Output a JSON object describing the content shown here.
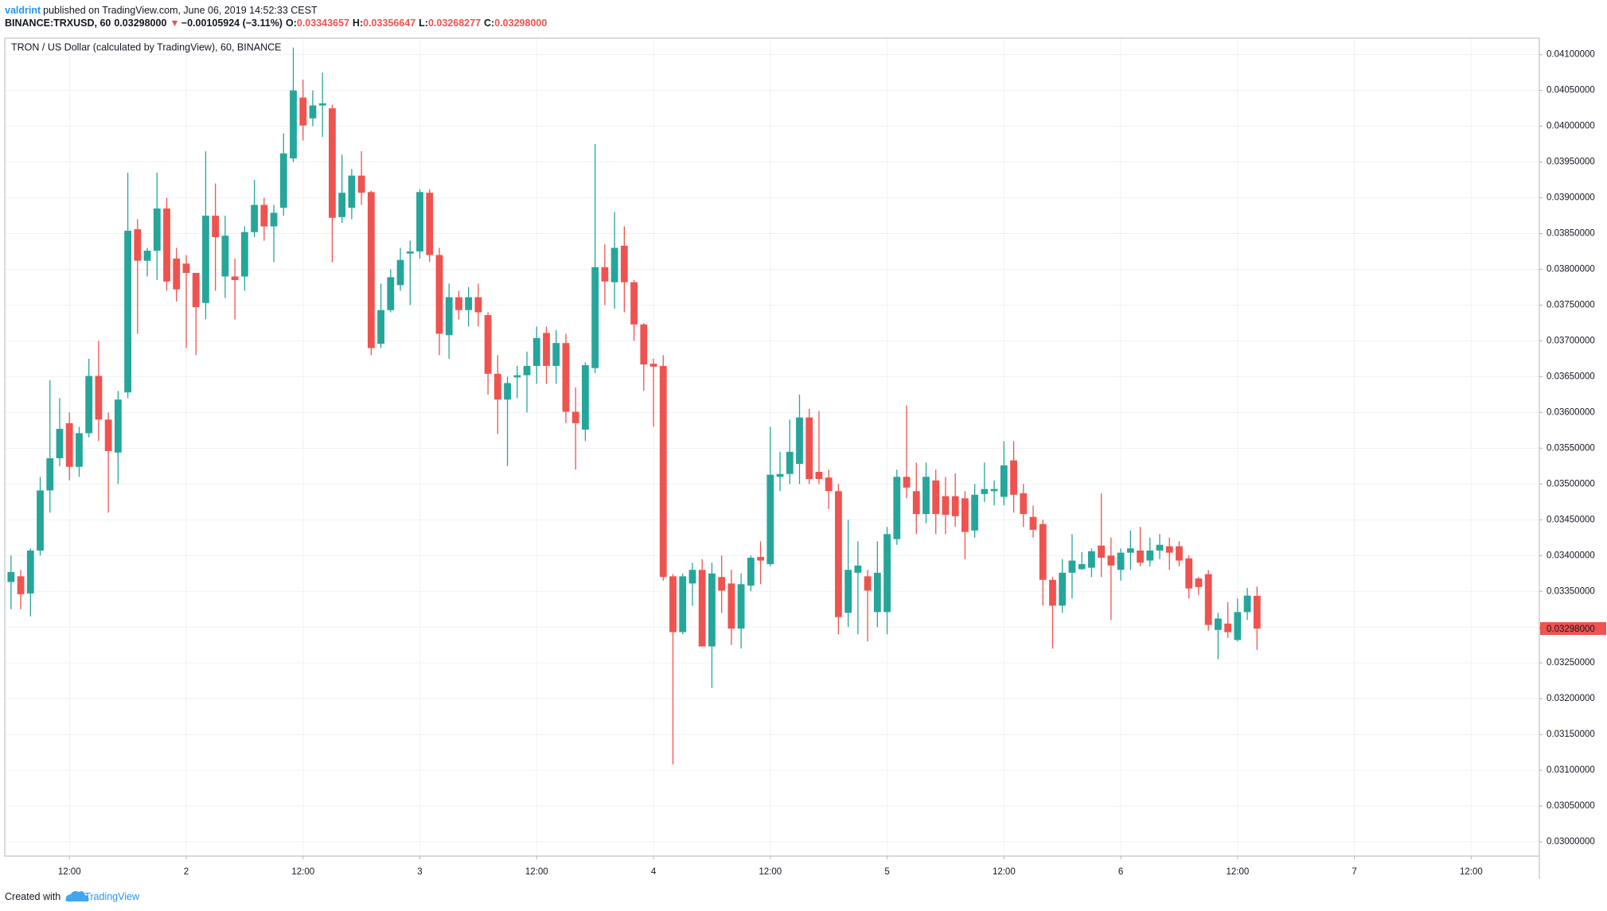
{
  "header": {
    "author": "valdrint",
    "published": "published on TradingView.com, June 06, 2019 14:52:33 CEST",
    "symbol": "BINANCE:TRXUSD, 60",
    "last": "0.03298000",
    "arrow": "▼",
    "change": "−0.00105924 (−3.11%)",
    "o_label": "O:",
    "open": "0.03343657",
    "h_label": "H:",
    "high": "0.03356647",
    "l_label": "L:",
    "low": "0.03268277",
    "c_label": "C:",
    "close": "0.03298000"
  },
  "footer": {
    "prefix": "Created with",
    "brand": "TradingView"
  },
  "chart_data": {
    "type": "candlestick",
    "title": "TRON / US Dollar (calculated by TradingView), 60, BINANCE",
    "up_color": "#26a69a",
    "down_color": "#ef5350",
    "grid": true,
    "categories": [
      null,
      null,
      null,
      null,
      null,
      null,
      "12:00",
      null,
      null,
      null,
      null,
      null,
      null,
      null,
      null,
      null,
      null,
      null,
      "2",
      null,
      null,
      null,
      null,
      null,
      null,
      null,
      null,
      null,
      null,
      null,
      "12:00",
      null,
      null,
      null,
      null,
      null,
      null,
      null,
      null,
      null,
      null,
      null,
      "3",
      null,
      null,
      null,
      null,
      null,
      null,
      null,
      null,
      null,
      null,
      null,
      "12:00",
      null,
      null,
      null,
      null,
      null,
      null,
      null,
      null,
      null,
      null,
      null,
      "4",
      null,
      null,
      null,
      null,
      null,
      null,
      null,
      null,
      null,
      null,
      null,
      "12:00",
      null,
      null,
      null,
      null,
      null,
      null,
      null,
      null,
      null,
      null,
      null,
      "5",
      null,
      null,
      null,
      null,
      null,
      null,
      null,
      null,
      null,
      null,
      null,
      "12:00",
      null,
      null,
      null,
      null,
      null,
      null,
      null,
      null,
      null,
      null,
      null,
      "6",
      null,
      null,
      null,
      null,
      null,
      null,
      null,
      null,
      null,
      null,
      null,
      "12:00",
      null,
      null,
      null,
      null,
      null,
      null,
      null,
      null,
      null,
      null,
      null,
      "7",
      null,
      null,
      null,
      null,
      null,
      null,
      null,
      null,
      null,
      null,
      null,
      "12:00",
      null,
      null,
      null,
      null,
      null,
      null,
      null
    ],
    "open": [
      0.03363,
      0.03371,
      0.03347,
      0.03407,
      0.03491,
      0.03536,
      0.03585,
      0.03524,
      0.03571,
      0.03651,
      0.0359,
      0.03544,
      0.03628,
      0.03856,
      0.03812,
      0.03826,
      0.03885,
      0.03815,
      0.03808,
      0.03795,
      0.03753,
      0.03875,
      0.0379,
      0.0379,
      0.0379,
      0.03852,
      0.0389,
      0.0386,
      0.03886,
      0.03955,
      0.0404,
      0.04011,
      0.04029,
      0.04025,
      0.03873,
      0.03886,
      0.03931,
      0.03908,
      0.03696,
      0.03743,
      0.03778,
      0.03822,
      0.03825,
      0.03907,
      0.0382,
      0.03708,
      0.03761,
      0.03743,
      0.03761,
      0.03736,
      0.03654,
      0.03618,
      0.03649,
      0.03652,
      0.03665,
      0.03711,
      0.03665,
      0.03697,
      0.03601,
      0.03576,
      0.03662,
      0.03803,
      0.03782,
      0.03833,
      0.03782,
      0.03723,
      0.03668,
      0.03665,
      0.03371,
      0.03293,
      0.03361,
      0.0338,
      0.03273,
      0.0337,
      0.03361,
      0.03298,
      0.03358,
      0.03398,
      0.03388,
      0.0351,
      0.03514,
      0.03528,
      0.03593,
      0.03517,
      0.03509,
      0.0349,
      0.0332,
      0.03376,
      0.03371,
      0.03321,
      0.03321,
      0.03423,
      0.0351,
      0.0349,
      0.03458,
      0.03505,
      0.03483,
      0.03483,
      0.0348,
      0.03435,
      0.03486,
      0.0349,
      0.03482,
      0.03533,
      0.03487,
      0.03454,
      0.03444,
      0.03366,
      0.0333,
      0.03376,
      0.03381,
      0.03383,
      0.03414,
      0.034,
      0.0338,
      0.03404,
      0.03407,
      0.03393,
      0.03407,
      0.03413,
      0.03413,
      0.03396,
      0.03368,
      0.03374,
      0.03296,
      0.03305,
      0.03282,
      0.03321,
      0.03343657,
      null,
      null,
      null,
      null,
      null,
      null,
      null,
      null,
      null,
      null,
      null,
      null,
      null,
      null,
      null,
      null,
      null,
      null,
      null,
      null,
      null,
      null,
      null,
      null,
      null,
      null,
      null,
      null,
      null
    ],
    "high": [
      0.034,
      0.0338,
      0.0341,
      0.0351,
      0.03645,
      0.0362,
      0.036,
      0.0358,
      0.03675,
      0.037,
      0.036,
      0.0363,
      0.03935,
      0.0387,
      0.0383,
      0.03935,
      0.039,
      0.0383,
      0.0382,
      0.03795,
      0.03965,
      0.0392,
      0.03875,
      0.03815,
      0.0386,
      0.03925,
      0.039,
      0.0389,
      0.0399,
      0.0411,
      0.04065,
      0.0405,
      0.04075,
      0.0403,
      0.0396,
      0.0394,
      0.03965,
      0.0391,
      0.0378,
      0.038,
      0.0383,
      0.0384,
      0.03912,
      0.03912,
      0.0383,
      0.0378,
      0.0377,
      0.03775,
      0.0378,
      0.0374,
      0.0368,
      0.0365,
      0.03665,
      0.03685,
      0.0372,
      0.0372,
      0.03715,
      0.0371,
      0.03635,
      0.0367,
      0.03975,
      0.03835,
      0.0388,
      0.0386,
      0.03785,
      0.03725,
      0.03675,
      0.0368,
      0.03374,
      0.03375,
      0.0339,
      0.03395,
      0.0339,
      0.034,
      0.0338,
      0.03375,
      0.034,
      0.0342,
      0.0358,
      0.03545,
      0.0359,
      0.03625,
      0.03605,
      0.03602,
      0.0352,
      0.035,
      0.0345,
      0.0342,
      0.0338,
      0.0342,
      0.0344,
      0.0352,
      0.0361,
      0.0353,
      0.0353,
      0.0352,
      0.0351,
      0.03515,
      0.0349,
      0.035,
      0.0353,
      0.03505,
      0.0356,
      0.0356,
      0.035,
      0.0347,
      0.0345,
      0.0337,
      0.03395,
      0.0343,
      0.03405,
      0.0341,
      0.03487,
      0.03425,
      0.0341,
      0.03435,
      0.0344,
      0.03425,
      0.0343,
      0.03425,
      0.0342,
      0.034,
      0.0337,
      0.0338,
      0.0332,
      0.03335,
      0.0334,
      0.03355,
      0.03356647,
      null,
      null,
      null,
      null,
      null,
      null,
      null,
      null,
      null,
      null,
      null,
      null,
      null,
      null,
      null,
      null,
      null,
      null,
      null,
      null,
      null,
      null,
      null,
      null,
      null,
      null,
      null,
      null,
      null
    ],
    "low": [
      0.03325,
      0.03325,
      0.03315,
      0.034,
      0.0346,
      0.03525,
      0.03505,
      0.0351,
      0.03565,
      0.0356,
      0.0346,
      0.035,
      0.0362,
      0.0371,
      0.0379,
      0.03785,
      0.0377,
      0.03755,
      0.0369,
      0.0368,
      0.0373,
      0.0377,
      0.0376,
      0.0373,
      0.0377,
      0.03845,
      0.0384,
      0.0381,
      0.03875,
      0.0395,
      0.0398,
      0.04,
      0.03985,
      0.0381,
      0.03865,
      0.0387,
      0.0389,
      0.0368,
      0.0369,
      0.0374,
      0.0377,
      0.0375,
      0.03815,
      0.0381,
      0.0368,
      0.03675,
      0.0373,
      0.0372,
      0.0372,
      0.03625,
      0.0357,
      0.03525,
      0.0362,
      0.036,
      0.0364,
      0.0364,
      0.0364,
      0.03585,
      0.0352,
      0.0356,
      0.03655,
      0.0375,
      0.03745,
      0.0374,
      0.037,
      0.0363,
      0.0358,
      0.03365,
      0.03108,
      0.0329,
      0.0333,
      0.03273,
      0.03215,
      0.0332,
      0.03275,
      0.0327,
      0.0335,
      0.0336,
      0.03385,
      0.0349,
      0.035,
      0.035,
      0.035,
      0.035,
      0.03465,
      0.0329,
      0.033,
      0.0329,
      0.0328,
      0.033,
      0.0329,
      0.03415,
      0.0348,
      0.0343,
      0.03445,
      0.0343,
      0.0343,
      0.0344,
      0.03395,
      0.03425,
      0.03475,
      0.0347,
      0.0347,
      0.0346,
      0.0344,
      0.03425,
      0.0333,
      0.0327,
      0.0332,
      0.0334,
      0.0338,
      0.0337,
      0.0337,
      0.0331,
      0.03365,
      0.0338,
      0.03385,
      0.03385,
      0.03395,
      0.0338,
      0.03385,
      0.0334,
      0.03345,
      0.03295,
      0.03255,
      0.03285,
      0.0328,
      0.0331,
      0.03268277,
      null,
      null,
      null,
      null,
      null,
      null,
      null,
      null,
      null,
      null,
      null,
      null,
      null,
      null,
      null,
      null,
      null,
      null,
      null,
      null,
      null,
      null,
      null,
      null,
      null,
      null,
      null,
      null,
      null
    ],
    "close": [
      0.03377,
      0.03346,
      0.03407,
      0.03491,
      0.03536,
      0.03577,
      0.03524,
      0.03571,
      0.03651,
      0.0359,
      0.03546,
      0.03618,
      0.03854,
      0.03812,
      0.03826,
      0.03885,
      0.03783,
      0.03772,
      0.03795,
      0.03747,
      0.03875,
      0.03845,
      0.03847,
      0.03785,
      0.03852,
      0.0389,
      0.0386,
      0.03879,
      0.03962,
      0.0405,
      0.04001,
      0.04029,
      0.04032,
      0.03872,
      0.03907,
      0.03931,
      0.03907,
      0.0369,
      0.03743,
      0.03789,
      0.03813,
      0.03825,
      0.03908,
      0.0382,
      0.0371,
      0.03761,
      0.03743,
      0.03761,
      0.0374,
      0.03654,
      0.03618,
      0.03641,
      0.03652,
      0.03665,
      0.03704,
      0.03665,
      0.03697,
      0.03601,
      0.03585,
      0.03666,
      0.03803,
      0.03783,
      0.0383,
      0.03782,
      0.03723,
      0.03667,
      0.03664,
      0.0337,
      0.03293,
      0.03371,
      0.0338,
      0.03273,
      0.03375,
      0.03351,
      0.03298,
      0.0336,
      0.03397,
      0.03393,
      0.03513,
      0.03514,
      0.03545,
      0.03593,
      0.03507,
      0.03507,
      0.0349,
      0.03314,
      0.0338,
      0.03386,
      0.03351,
      0.03376,
      0.0343,
      0.0351,
      0.03495,
      0.03458,
      0.0351,
      0.03458,
      0.03457,
      0.03455,
      0.03433,
      0.03485,
      0.03493,
      0.03493,
      0.03526,
      0.03485,
      0.03458,
      0.03436,
      0.03366,
      0.0333,
      0.03376,
      0.03393,
      0.03388,
      0.03406,
      0.03397,
      0.03386,
      0.03404,
      0.0341,
      0.0339,
      0.03407,
      0.03415,
      0.03404,
      0.03393,
      0.03354,
      0.03356,
      0.03303,
      0.03312,
      0.03293,
      0.03321,
      0.03344,
      0.03298,
      null,
      null,
      null,
      null,
      null,
      null,
      null,
      null,
      null,
      null,
      null,
      null,
      null,
      null,
      null,
      null,
      null,
      null,
      null,
      null,
      null,
      null,
      null,
      null,
      null,
      null,
      null,
      null,
      null
    ],
    "ylim": [
      0.0298,
      0.04123
    ],
    "yticks": [
      {
        "value": 0.03,
        "label": "0.03000000"
      },
      {
        "value": 0.0305,
        "label": "0.03050000"
      },
      {
        "value": 0.031,
        "label": "0.03100000"
      },
      {
        "value": 0.0315,
        "label": "0.03150000"
      },
      {
        "value": 0.032,
        "label": "0.03200000"
      },
      {
        "value": 0.0325,
        "label": "0.03250000"
      },
      {
        "value": 0.033,
        "label": "0.03300000"
      },
      {
        "value": 0.0335,
        "label": "0.03350000"
      },
      {
        "value": 0.034,
        "label": "0.03400000"
      },
      {
        "value": 0.0345,
        "label": "0.03450000"
      },
      {
        "value": 0.035,
        "label": "0.03500000"
      },
      {
        "value": 0.0355,
        "label": "0.03550000"
      },
      {
        "value": 0.036,
        "label": "0.03600000"
      },
      {
        "value": 0.0365,
        "label": "0.03650000"
      },
      {
        "value": 0.037,
        "label": "0.03700000"
      },
      {
        "value": 0.0375,
        "label": "0.03750000"
      },
      {
        "value": 0.038,
        "label": "0.03800000"
      },
      {
        "value": 0.0385,
        "label": "0.03850000"
      },
      {
        "value": 0.039,
        "label": "0.03900000"
      },
      {
        "value": 0.0395,
        "label": "0.03950000"
      },
      {
        "value": 0.04,
        "label": "0.04000000"
      },
      {
        "value": 0.0405,
        "label": "0.04050000"
      },
      {
        "value": 0.041,
        "label": "0.04100000"
      }
    ],
    "price_tag": {
      "value": 0.03298,
      "label": "0.03298000"
    }
  }
}
